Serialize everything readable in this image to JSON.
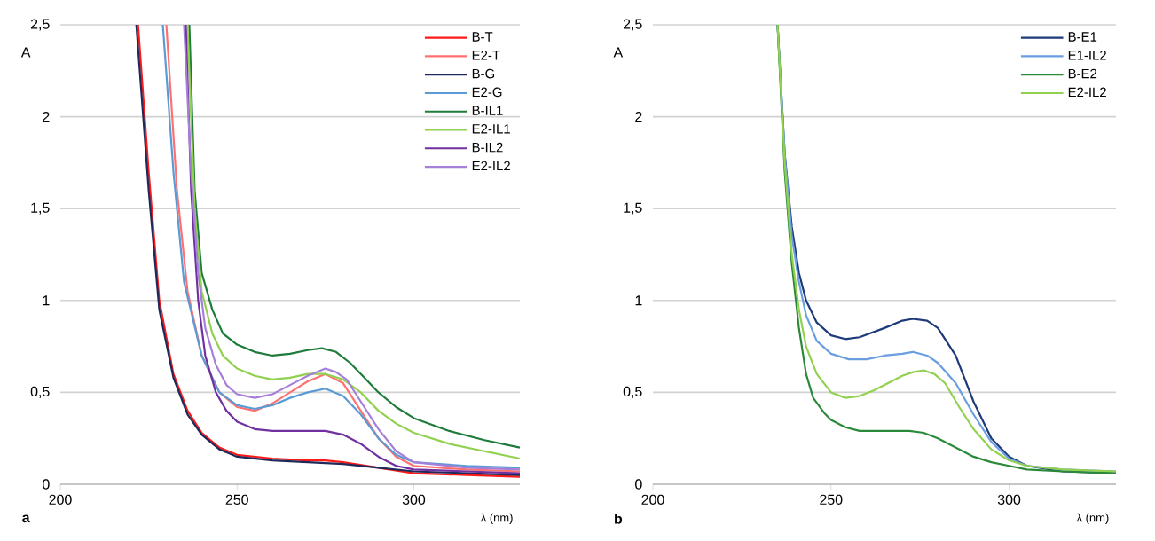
{
  "chart_data": [
    {
      "type": "line",
      "xlabel": "λ (nm)",
      "ylabel": "A",
      "annotations": [
        "a"
      ],
      "xlim": [
        200,
        330
      ],
      "ylim": [
        0,
        2.5
      ],
      "xticks": [
        200,
        250,
        300
      ],
      "yticks": [
        0,
        {
          "value": 0.5,
          "label": "0,5"
        },
        1,
        {
          "value": 1.5,
          "label": "1,5"
        },
        2,
        {
          "value": 2.5,
          "label": "2,5"
        }
      ],
      "grid": "y",
      "legend": "top right",
      "series": [
        {
          "name": "B-T",
          "color": "#ff1a1a",
          "x": [
            222,
            225,
            228,
            232,
            236,
            240,
            245,
            250,
            260,
            270,
            275,
            280,
            290,
            300,
            315,
            330
          ],
          "values": [
            2.5,
            1.7,
            1.0,
            0.6,
            0.4,
            0.28,
            0.2,
            0.16,
            0.14,
            0.13,
            0.13,
            0.12,
            0.09,
            0.06,
            0.05,
            0.04
          ]
        },
        {
          "name": "E2-T",
          "color": "#ff7070",
          "x": [
            230,
            233,
            236,
            240,
            245,
            250,
            255,
            260,
            265,
            270,
            275,
            280,
            285,
            290,
            295,
            300,
            315,
            330
          ],
          "values": [
            2.5,
            1.6,
            1.05,
            0.7,
            0.5,
            0.42,
            0.4,
            0.44,
            0.5,
            0.56,
            0.6,
            0.55,
            0.4,
            0.25,
            0.15,
            0.1,
            0.08,
            0.07
          ]
        },
        {
          "name": "B-G",
          "color": "#1f2a5a",
          "x": [
            221.5,
            225,
            228,
            232,
            236,
            240,
            245,
            250,
            260,
            270,
            280,
            290,
            300,
            315,
            330
          ],
          "values": [
            2.5,
            1.6,
            0.95,
            0.58,
            0.38,
            0.27,
            0.19,
            0.15,
            0.13,
            0.12,
            0.11,
            0.09,
            0.07,
            0.06,
            0.05
          ]
        },
        {
          "name": "E2-G",
          "color": "#5b9bd5",
          "x": [
            229,
            232,
            235,
            240,
            245,
            250,
            255,
            260,
            265,
            270,
            275,
            280,
            285,
            290,
            295,
            300,
            315,
            330
          ],
          "values": [
            2.5,
            1.7,
            1.1,
            0.7,
            0.5,
            0.43,
            0.41,
            0.43,
            0.47,
            0.5,
            0.52,
            0.48,
            0.38,
            0.25,
            0.16,
            0.12,
            0.1,
            0.09
          ]
        },
        {
          "name": "B-IL1",
          "color": "#1e7b3a",
          "x": [
            236.5,
            238,
            240,
            243,
            246,
            250,
            255,
            260,
            265,
            270,
            274,
            278,
            282,
            286,
            290,
            295,
            300,
            310,
            320,
            330
          ],
          "values": [
            2.5,
            1.6,
            1.15,
            0.95,
            0.82,
            0.76,
            0.72,
            0.7,
            0.71,
            0.73,
            0.74,
            0.72,
            0.66,
            0.58,
            0.5,
            0.42,
            0.36,
            0.29,
            0.24,
            0.2
          ]
        },
        {
          "name": "E2-IL1",
          "color": "#92d050",
          "x": [
            236,
            238,
            240,
            243,
            246,
            250,
            255,
            260,
            265,
            270,
            275,
            280,
            285,
            290,
            295,
            300,
            310,
            320,
            330
          ],
          "values": [
            2.5,
            1.5,
            1.05,
            0.82,
            0.7,
            0.63,
            0.59,
            0.57,
            0.58,
            0.6,
            0.6,
            0.57,
            0.5,
            0.4,
            0.33,
            0.28,
            0.22,
            0.18,
            0.14
          ]
        },
        {
          "name": "B-IL2",
          "color": "#7030a0",
          "x": [
            235.5,
            237,
            239,
            241,
            244,
            247,
            250,
            255,
            260,
            270,
            275,
            280,
            285,
            290,
            295,
            300,
            315,
            330
          ],
          "values": [
            2.5,
            1.6,
            1.0,
            0.7,
            0.5,
            0.4,
            0.34,
            0.3,
            0.29,
            0.29,
            0.29,
            0.27,
            0.22,
            0.15,
            0.1,
            0.08,
            0.07,
            0.06
          ]
        },
        {
          "name": "E2-IL2",
          "color": "#a57fd8",
          "x": [
            235,
            237,
            239,
            241,
            244,
            247,
            250,
            255,
            260,
            265,
            270,
            275,
            278,
            281,
            285,
            290,
            295,
            300,
            315,
            330
          ],
          "values": [
            2.5,
            1.7,
            1.15,
            0.85,
            0.65,
            0.54,
            0.49,
            0.47,
            0.49,
            0.54,
            0.59,
            0.63,
            0.61,
            0.57,
            0.45,
            0.3,
            0.18,
            0.12,
            0.09,
            0.08
          ]
        }
      ]
    },
    {
      "type": "line",
      "xlabel": "λ (nm)",
      "ylabel": "A",
      "annotations": [
        "b"
      ],
      "xlim": [
        200,
        330
      ],
      "ylim": [
        0,
        2.5
      ],
      "xticks": [
        200,
        250,
        300
      ],
      "yticks": [
        0,
        {
          "value": 0.5,
          "label": "0,5"
        },
        1,
        {
          "value": 1.5,
          "label": "1,5"
        },
        2,
        {
          "value": 2.5,
          "label": "2,5"
        }
      ],
      "grid": "y",
      "legend": "top right",
      "series": [
        {
          "name": "B-E1",
          "color": "#1f3a7a",
          "x": [
            235,
            237,
            239,
            241,
            243,
            246,
            250,
            254,
            258,
            265,
            270,
            273,
            277,
            280,
            285,
            290,
            295,
            300,
            305,
            315,
            330
          ],
          "values": [
            2.5,
            1.8,
            1.4,
            1.15,
            1.0,
            0.88,
            0.81,
            0.79,
            0.8,
            0.85,
            0.89,
            0.9,
            0.89,
            0.85,
            0.7,
            0.45,
            0.25,
            0.15,
            0.1,
            0.07,
            0.06
          ]
        },
        {
          "name": "E1-IL2",
          "color": "#6a9ee0",
          "x": [
            235,
            237,
            239,
            241,
            243,
            246,
            250,
            255,
            260,
            265,
            270,
            273,
            277,
            280,
            285,
            290,
            295,
            300,
            305,
            315,
            330
          ],
          "values": [
            2.5,
            1.8,
            1.35,
            1.1,
            0.92,
            0.78,
            0.71,
            0.68,
            0.68,
            0.7,
            0.71,
            0.72,
            0.7,
            0.66,
            0.55,
            0.38,
            0.23,
            0.14,
            0.1,
            0.08,
            0.07
          ]
        },
        {
          "name": "B-E2",
          "color": "#2a8a3a",
          "x": [
            235,
            237,
            239,
            241,
            243,
            245,
            248,
            250,
            254,
            258,
            265,
            272,
            276,
            280,
            285,
            290,
            295,
            300,
            305,
            315,
            330
          ],
          "values": [
            2.5,
            1.7,
            1.2,
            0.85,
            0.6,
            0.47,
            0.39,
            0.35,
            0.31,
            0.29,
            0.29,
            0.29,
            0.28,
            0.25,
            0.2,
            0.15,
            0.12,
            0.1,
            0.08,
            0.07,
            0.06
          ]
        },
        {
          "name": "E2-IL2",
          "color": "#92d050",
          "x": [
            235,
            237,
            239,
            241,
            243,
            246,
            250,
            254,
            258,
            262,
            266,
            270,
            273,
            276,
            279,
            282,
            286,
            290,
            295,
            300,
            305,
            315,
            330
          ],
          "values": [
            2.5,
            1.75,
            1.25,
            0.95,
            0.75,
            0.6,
            0.5,
            0.47,
            0.48,
            0.51,
            0.55,
            0.59,
            0.61,
            0.62,
            0.6,
            0.55,
            0.42,
            0.3,
            0.19,
            0.13,
            0.1,
            0.08,
            0.07
          ]
        }
      ]
    }
  ]
}
